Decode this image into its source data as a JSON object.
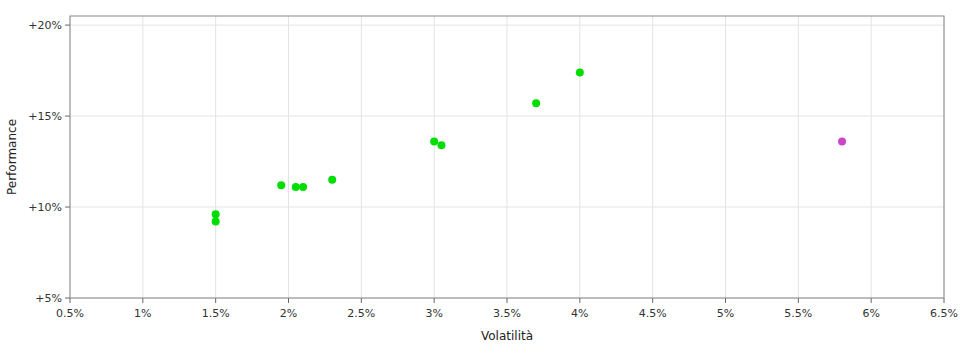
{
  "chart_data": {
    "type": "scatter",
    "xlabel": "Volatilità",
    "ylabel": "Performance",
    "xlim": [
      0.005,
      0.065
    ],
    "ylim": [
      0.05,
      0.205
    ],
    "xticks": [
      {
        "value": 0.005,
        "label": "0.5%"
      },
      {
        "value": 0.01,
        "label": "1%"
      },
      {
        "value": 0.015,
        "label": "1.5%"
      },
      {
        "value": 0.02,
        "label": "2%"
      },
      {
        "value": 0.025,
        "label": "2.5%"
      },
      {
        "value": 0.03,
        "label": "3%"
      },
      {
        "value": 0.035,
        "label": "3.5%"
      },
      {
        "value": 0.04,
        "label": "4%"
      },
      {
        "value": 0.045,
        "label": "4.5%"
      },
      {
        "value": 0.05,
        "label": "5%"
      },
      {
        "value": 0.055,
        "label": "5.5%"
      },
      {
        "value": 0.06,
        "label": "6%"
      },
      {
        "value": 0.065,
        "label": "6.5%"
      }
    ],
    "yticks": [
      {
        "value": 0.05,
        "label": "+5%"
      },
      {
        "value": 0.1,
        "label": "+10%"
      },
      {
        "value": 0.15,
        "label": "+15%"
      },
      {
        "value": 0.2,
        "label": "+20%"
      }
    ],
    "grid": true,
    "series": [
      {
        "color": "#00dd00",
        "x": [
          0.015,
          0.015,
          0.0195,
          0.0205,
          0.021,
          0.023,
          0.03,
          0.0305,
          0.037,
          0.04
        ],
        "values": [
          0.096,
          0.092,
          0.112,
          0.111,
          0.111,
          0.115,
          0.136,
          0.134,
          0.157,
          0.174
        ]
      },
      {
        "color": "#cc44cc",
        "x": [
          0.058
        ],
        "values": [
          0.136
        ]
      }
    ]
  }
}
